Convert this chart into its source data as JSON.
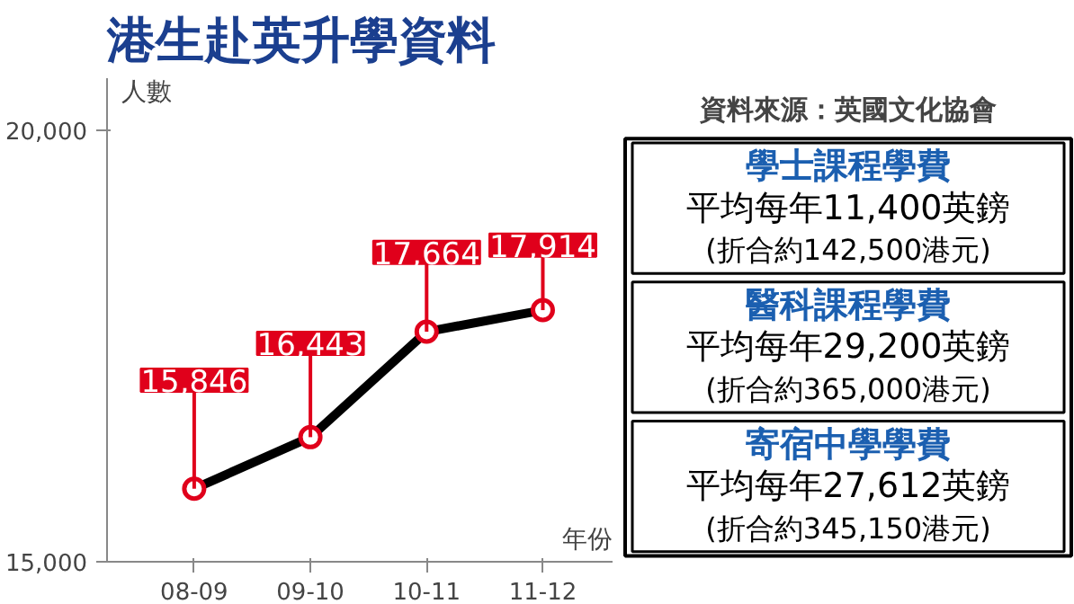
{
  "chart_data": [
    {
      "type": "line",
      "title": "港生赴英升學資料",
      "ylabel": "人數",
      "xlabel": "年份",
      "categories": [
        "08-09",
        "09-10",
        "10-11",
        "11-12"
      ],
      "series": [
        {
          "color": "#000000",
          "values": [
            15846,
            16443,
            17664,
            17914
          ],
          "value_labels": [
            "15,846",
            "16,443",
            "17,664",
            "17,914"
          ]
        }
      ],
      "ylim": [
        15000,
        20600
      ],
      "yticks": [
        {
          "value": 15000,
          "label": "15,000"
        },
        {
          "value": 20000,
          "label": "20,000"
        }
      ],
      "marker": "circle",
      "grid": false
    },
    {
      "type": "other",
      "annotations": [
        "資料來源：英國文化協會",
        "學士課程學費",
        "平均每年11,400英鎊",
        "(折合約142,500港元)",
        "醫科課程學費",
        "平均每年29,200英鎊",
        "(折合約365,000港元)",
        "寄宿中學學費",
        "平均每年27,612英鎊",
        "(折合約345,150港元)"
      ]
    }
  ]
}
